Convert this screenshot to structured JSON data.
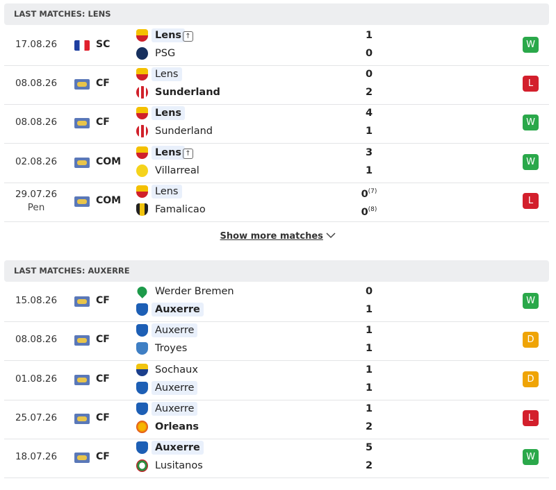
{
  "sections": [
    {
      "title": "LAST MATCHES: LENS",
      "matches": [
        {
          "date": "17.08.26",
          "competition": "SC",
          "home": {
            "name": "Lens",
            "score": 1
          },
          "away": {
            "name": "PSG",
            "score": 0
          },
          "result": "W"
        },
        {
          "date": "08.08.26",
          "competition": "CF",
          "home": {
            "name": "Lens",
            "score": 0
          },
          "away": {
            "name": "Sunderland",
            "score": 2
          },
          "result": "L"
        },
        {
          "date": "08.08.26",
          "competition": "CF",
          "home": {
            "name": "Lens",
            "score": 4
          },
          "away": {
            "name": "Sunderland",
            "score": 1
          },
          "result": "W"
        },
        {
          "date": "02.08.26",
          "competition": "COM",
          "home": {
            "name": "Lens",
            "score": 3
          },
          "away": {
            "name": "Villarreal",
            "score": 1
          },
          "result": "W"
        },
        {
          "date": "29.07.26",
          "note": "Pen",
          "competition": "COM",
          "home": {
            "name": "Lens",
            "score": 0,
            "penalties": "(7)"
          },
          "away": {
            "name": "Famalicao",
            "score": 0,
            "penalties": "(8)"
          },
          "result": "L"
        }
      ],
      "show_more": "Show more matches"
    },
    {
      "title": "LAST MATCHES: AUXERRE",
      "matches": [
        {
          "date": "15.08.26",
          "competition": "CF",
          "home": {
            "name": "Werder Bremen",
            "score": 0
          },
          "away": {
            "name": "Auxerre",
            "score": 1
          },
          "result": "W"
        },
        {
          "date": "08.08.26",
          "competition": "CF",
          "home": {
            "name": "Auxerre",
            "score": 1
          },
          "away": {
            "name": "Troyes",
            "score": 1
          },
          "result": "D"
        },
        {
          "date": "01.08.26",
          "competition": "CF",
          "home": {
            "name": "Sochaux",
            "score": 1
          },
          "away": {
            "name": "Auxerre",
            "score": 1
          },
          "result": "D"
        },
        {
          "date": "25.07.26",
          "competition": "CF",
          "home": {
            "name": "Auxerre",
            "score": 1
          },
          "away": {
            "name": "Orleans",
            "score": 2
          },
          "result": "L"
        },
        {
          "date": "18.07.26",
          "competition": "CF",
          "home": {
            "name": "Auxerre",
            "score": 5
          },
          "away": {
            "name": "Lusitanos",
            "score": 2
          },
          "result": "W"
        }
      ]
    }
  ]
}
